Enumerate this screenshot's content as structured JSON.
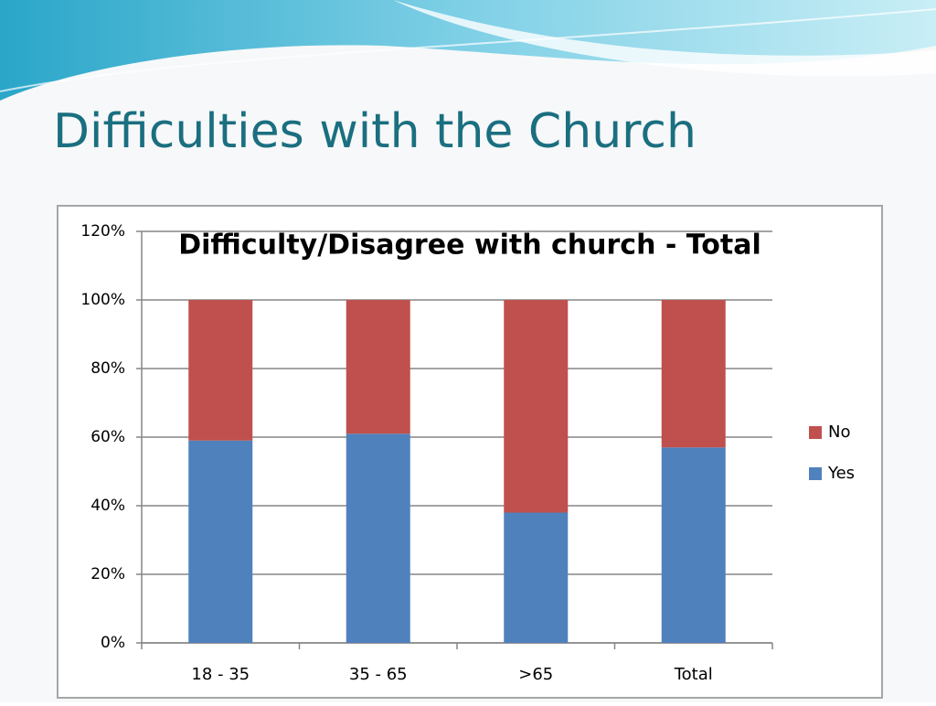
{
  "slide_title": "Difficulties with the Church",
  "chart_data": {
    "type": "stacked-bar",
    "title": "Difficulty/Disagree with church - Total",
    "categories": [
      "18 - 35",
      "35 - 65",
      ">65",
      "Total"
    ],
    "series": [
      {
        "name": "Yes",
        "color": "#4f81bd",
        "values": [
          59,
          61,
          38,
          57
        ]
      },
      {
        "name": "No",
        "color": "#c0504d",
        "values": [
          41,
          39,
          62,
          43
        ]
      }
    ],
    "ylim": [
      0,
      120
    ],
    "yticks": [
      {
        "value": 0,
        "label": "0%"
      },
      {
        "value": 20,
        "label": "20%"
      },
      {
        "value": 40,
        "label": "40%"
      },
      {
        "value": 60,
        "label": "60%"
      },
      {
        "value": 80,
        "label": "80%"
      },
      {
        "value": 100,
        "label": "100%"
      },
      {
        "value": 120,
        "label": "120%"
      }
    ],
    "grid": true,
    "legend": "right"
  }
}
